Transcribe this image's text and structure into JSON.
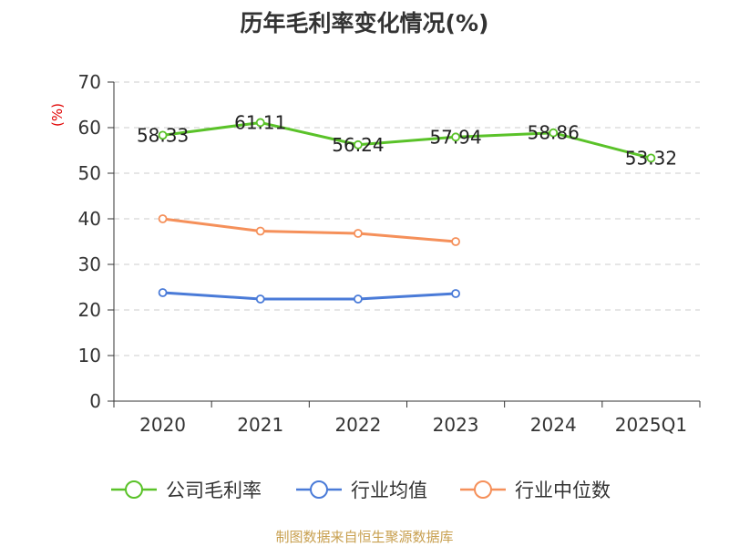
{
  "chart_data": {
    "type": "line",
    "title": "历年毛利率变化情况(%)",
    "ylabel": "(%)",
    "categories": [
      "2020",
      "2021",
      "2022",
      "2023",
      "2024",
      "2025Q1"
    ],
    "ylim": [
      0,
      70
    ],
    "yticks": [
      0,
      10,
      20,
      30,
      40,
      50,
      60,
      70
    ],
    "grid": true,
    "legend_position": "bottom",
    "series": [
      {
        "name": "公司毛利率",
        "color": "#5ac229",
        "values": [
          58.33,
          61.11,
          56.24,
          57.94,
          58.86,
          53.32
        ],
        "labels": [
          "58.33",
          "61.11",
          "56.24",
          "57.94",
          "58.86",
          "53.32"
        ]
      },
      {
        "name": "行业均值",
        "color": "#4a7bd8",
        "values": [
          23.8,
          22.4,
          22.4,
          23.6,
          null,
          null
        ]
      },
      {
        "name": "行业中位数",
        "color": "#f5905a",
        "values": [
          40.0,
          37.3,
          36.8,
          35.0,
          null,
          null
        ]
      }
    ]
  },
  "footer": {
    "source": "制图数据来自恒生聚源数据库"
  }
}
